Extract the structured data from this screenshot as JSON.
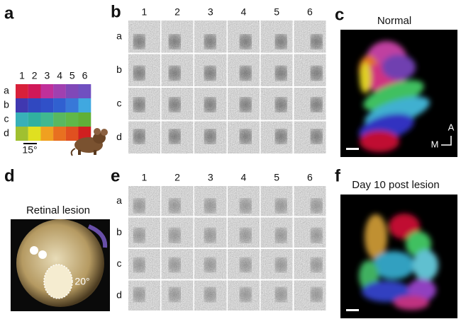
{
  "panels": {
    "a": {
      "label": "a",
      "columns": [
        "1",
        "2",
        "3",
        "4",
        "5",
        "6"
      ],
      "rows": [
        "a",
        "b",
        "c",
        "d"
      ],
      "scale": "15°"
    },
    "b": {
      "label": "b",
      "columns": [
        "1",
        "2",
        "3",
        "4",
        "5",
        "6"
      ],
      "rows": [
        "a",
        "b",
        "c",
        "d"
      ]
    },
    "c": {
      "label": "c",
      "title": "Normal",
      "axis_a": "A",
      "axis_m": "M"
    },
    "d": {
      "label": "d",
      "title": "Retinal lesion",
      "angle": "20°"
    },
    "e": {
      "label": "e",
      "columns": [
        "1",
        "2",
        "3",
        "4",
        "5",
        "6"
      ],
      "rows": [
        "a",
        "b",
        "c",
        "d"
      ]
    },
    "f": {
      "label": "f",
      "title": "Day 10 post lesion"
    }
  }
}
